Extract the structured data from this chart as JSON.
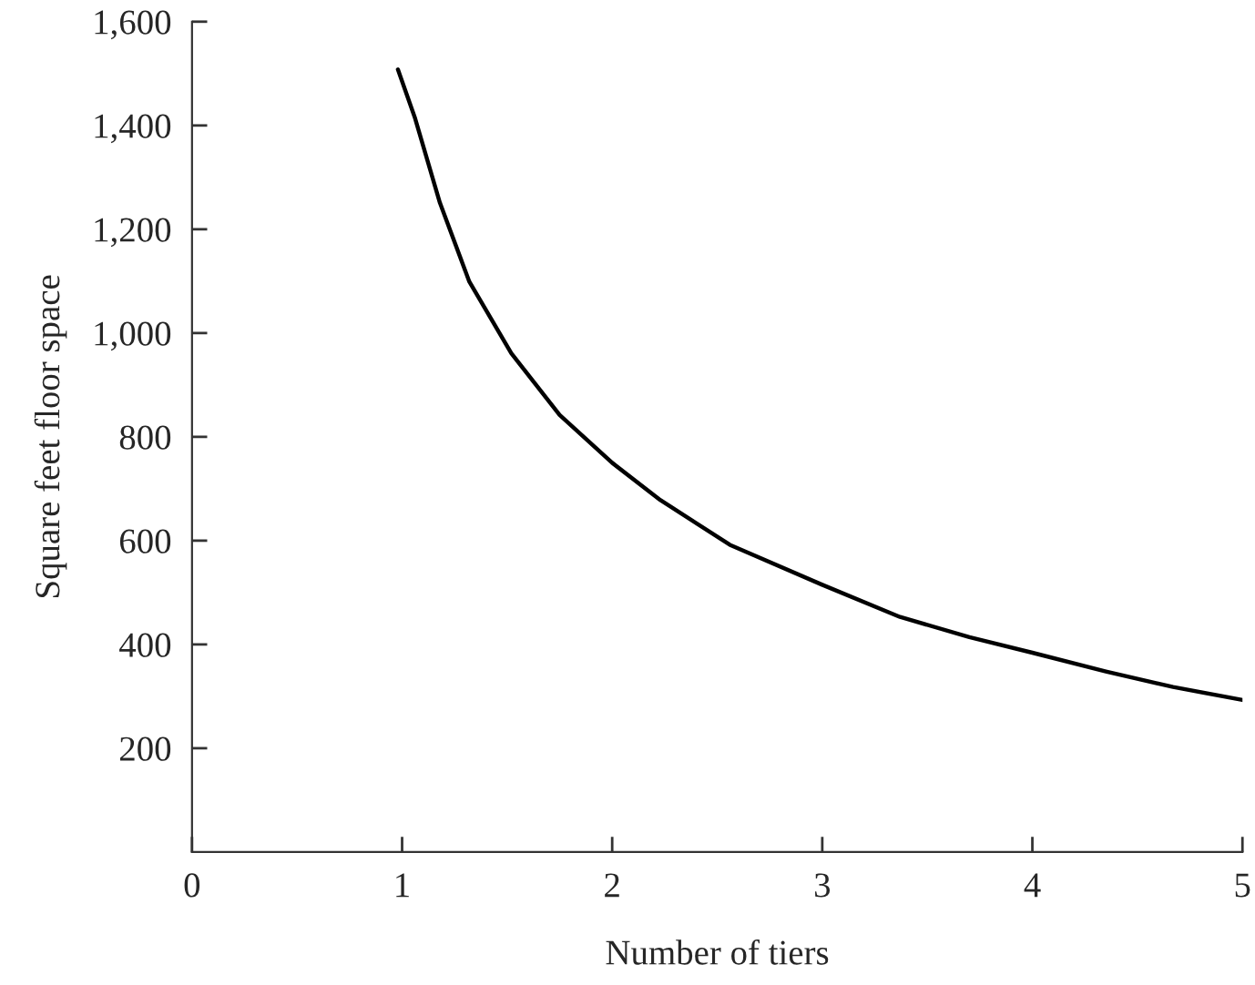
{
  "chart_data": {
    "type": "line",
    "xlabel": "Number of tiers",
    "ylabel": "Square feet floor space",
    "series": [
      {
        "color": "#000000",
        "x": [
          0.98,
          1.06,
          1.18,
          1.32,
          1.52,
          1.75,
          2,
          2.23,
          2.56,
          3,
          3.37,
          3.7,
          4,
          4.35,
          4.67,
          5
        ],
        "values": [
          1508,
          1416,
          1251,
          1099,
          961,
          842,
          750,
          678,
          592,
          515,
          453,
          414,
          384,
          348,
          318,
          293
        ]
      }
    ],
    "xlim": [
      0,
      5
    ],
    "ylim": [
      0,
      1600
    ],
    "xticks": [
      0,
      1,
      2,
      3,
      4,
      5
    ],
    "yticks": [
      {
        "value": 200,
        "label": "200"
      },
      {
        "value": 400,
        "label": "400"
      },
      {
        "value": 600,
        "label": "600"
      },
      {
        "value": 800,
        "label": "800"
      },
      {
        "value": 1000,
        "label": "1,000"
      },
      {
        "value": 1200,
        "label": "1,200"
      },
      {
        "value": 1400,
        "label": "1,400"
      },
      {
        "value": 1600,
        "label": "1,600"
      }
    ],
    "grid": false,
    "legend": false,
    "marker": "none",
    "line_style": "solid"
  }
}
